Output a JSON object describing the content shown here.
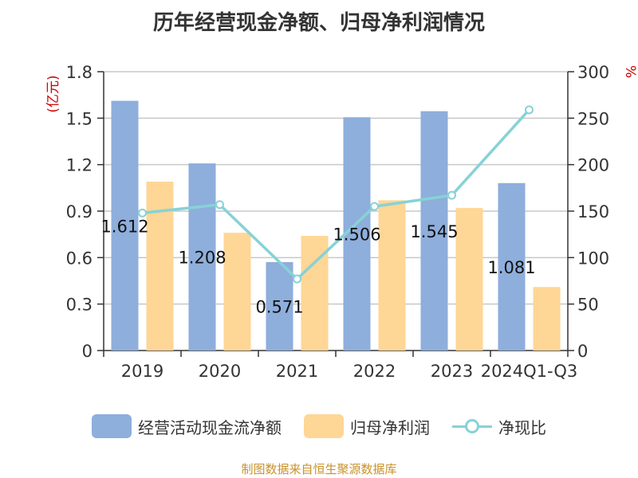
{
  "title": "历年经营现金净额、归母净利润情况",
  "source": "制图数据来自恒生聚源数据库",
  "colors": {
    "cash_flow": "#8eaedc",
    "net_profit": "#fed695",
    "ratio": "#87d2d6",
    "left_unit": "#cc0000",
    "right_unit": "#cc0000",
    "grid": "#c8c8c8",
    "axis": "#333333"
  },
  "chart_data": {
    "type": "bar",
    "categories": [
      "2019",
      "2020",
      "2021",
      "2022",
      "2023",
      "2024Q1-Q3"
    ],
    "left_axis": {
      "unit": "(亿元)",
      "ylim": [
        0,
        1.8
      ],
      "ticks": [
        "0",
        "0.3",
        "0.6",
        "0.9",
        "1.2",
        "1.5",
        "1.8"
      ]
    },
    "right_axis": {
      "unit": "%",
      "ylim": [
        0,
        300
      ],
      "ticks": [
        "0",
        "50",
        "100",
        "150",
        "200",
        "250",
        "300"
      ]
    },
    "series": [
      {
        "name": "经营活动现金流净额",
        "type": "bar",
        "axis": "left",
        "values": [
          1.612,
          1.208,
          0.571,
          1.506,
          1.545,
          1.081
        ],
        "labels": [
          "1.612",
          "1.208",
          "0.571",
          "1.506",
          "1.545",
          "1.081"
        ]
      },
      {
        "name": "归母净利润",
        "type": "bar",
        "axis": "left",
        "values": [
          1.09,
          0.76,
          0.74,
          0.97,
          0.92,
          0.41
        ]
      },
      {
        "name": "净现比",
        "type": "line",
        "axis": "right",
        "values": [
          148,
          157,
          77,
          155,
          167,
          259
        ]
      }
    ],
    "grid": true,
    "legend": "bottom"
  }
}
